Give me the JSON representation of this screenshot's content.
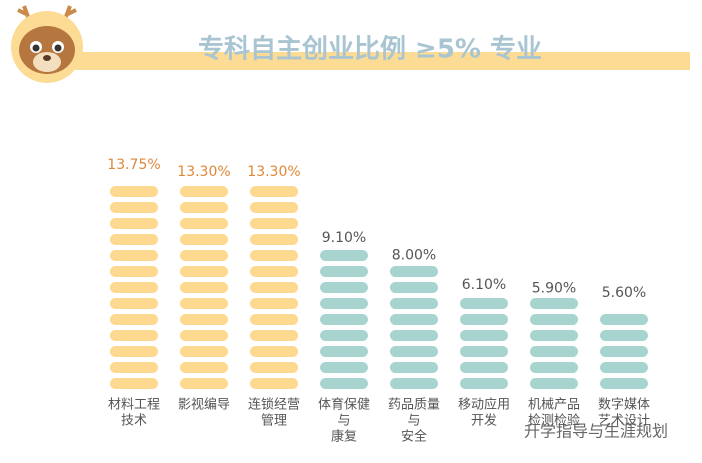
{
  "chart_data": {
    "type": "pictogram-bar",
    "title": "专科自主创业比例 ≥5% 专业",
    "categories": [
      [
        "材料工程",
        "技术"
      ],
      [
        "影视编导"
      ],
      [
        "连锁经营",
        "管理"
      ],
      [
        "体育保健",
        "与",
        "康复"
      ],
      [
        "药品质量",
        "与",
        "安全"
      ],
      [
        "移动应用",
        "开发"
      ],
      [
        "机械产品",
        "检测检验"
      ],
      [
        "数字媒体",
        "艺术设计"
      ]
    ],
    "values": [
      13.75,
      13.3,
      13.3,
      9.1,
      8.0,
      6.1,
      5.9,
      5.6
    ],
    "value_labels": [
      "13.75%",
      "13.30%",
      "13.30%",
      "9.10%",
      "8.00%",
      "6.10%",
      "5.90%",
      "5.60%"
    ],
    "colors": [
      "#fdd88f",
      "#fdd88f",
      "#fdd88f",
      "#a8d4cf",
      "#a8d4cf",
      "#a8d4cf",
      "#a8d4cf",
      "#a8d4cf"
    ],
    "label_colors": [
      "#e0883a",
      "#e0883a",
      "#e0883a",
      "#555555",
      "#555555",
      "#555555",
      "#555555",
      "#555555"
    ],
    "watermark": "升学指导与生涯规划"
  }
}
